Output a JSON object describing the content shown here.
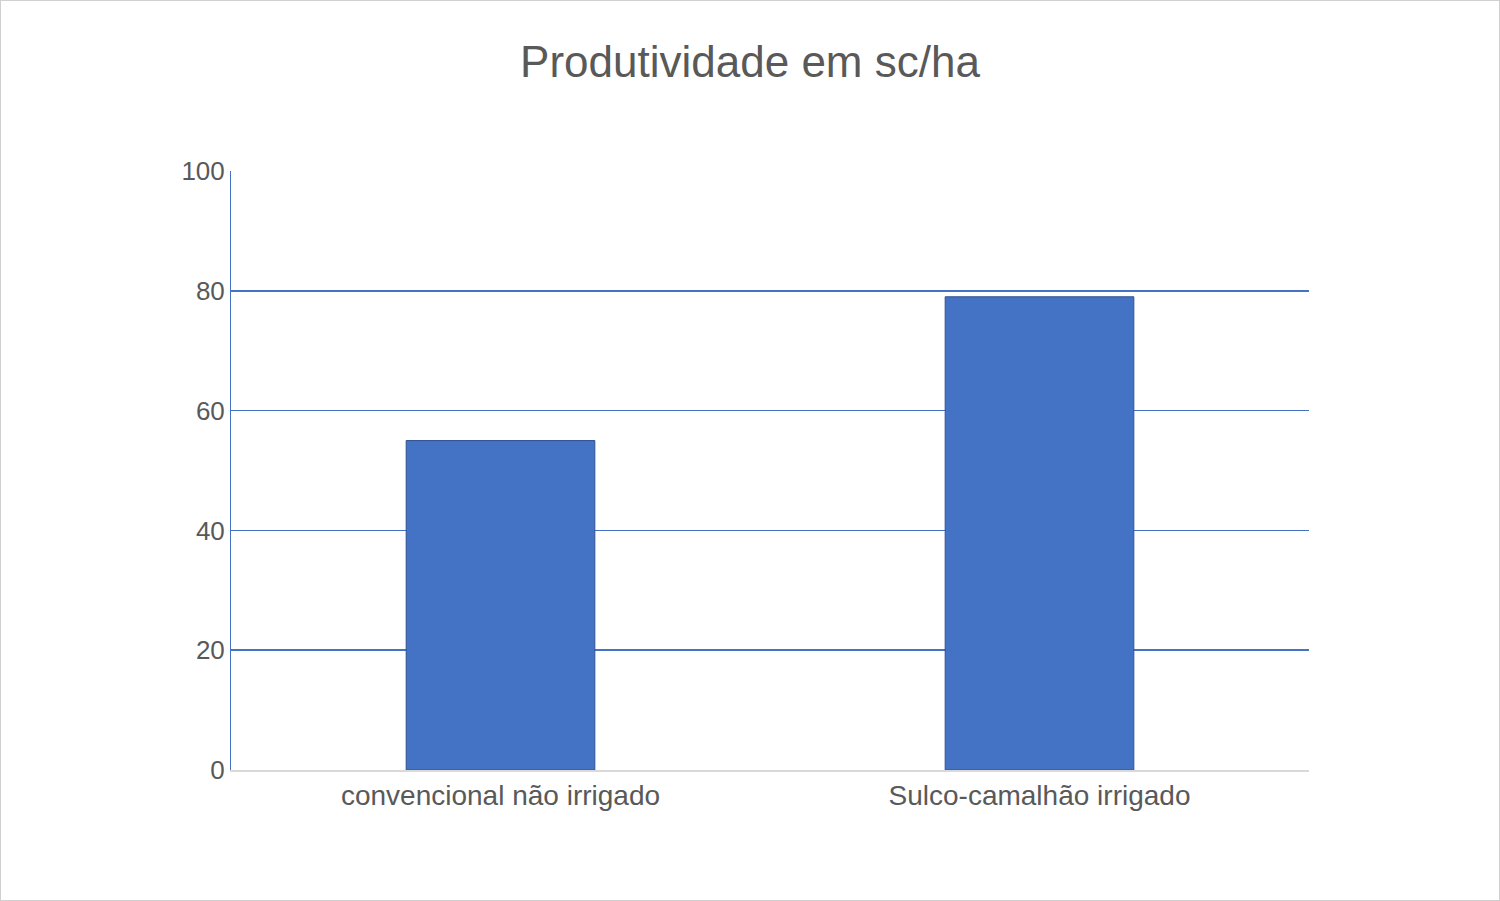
{
  "chart_data": {
    "type": "bar",
    "title": "Produtividade em sc/ha",
    "categories": [
      "convencional não irrigado",
      "Sulco-camalhão irrigado"
    ],
    "values": [
      55,
      79
    ],
    "color": "#4472c4",
    "ylim": [
      0,
      100
    ],
    "yticks": [
      0,
      20,
      40,
      60,
      80,
      100
    ],
    "grid": true
  }
}
